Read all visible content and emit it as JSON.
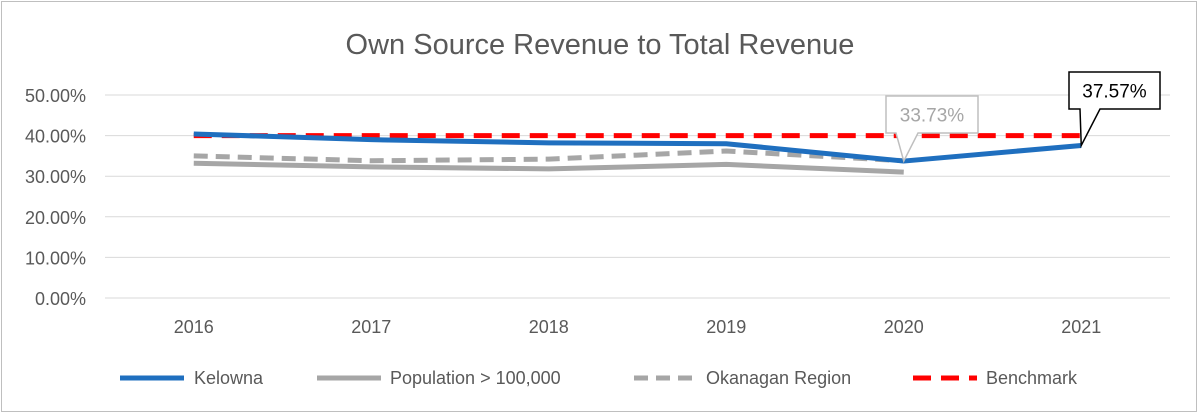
{
  "chart_data": {
    "type": "line",
    "title": "Own Source Revenue to Total Revenue",
    "xlabel": "",
    "ylabel": "",
    "categories": [
      "2016",
      "2017",
      "2018",
      "2019",
      "2020",
      "2021"
    ],
    "ylim": [
      0,
      50
    ],
    "yticks": [
      "0.00%",
      "10.00%",
      "20.00%",
      "30.00%",
      "40.00%",
      "50.00%"
    ],
    "grid": true,
    "legend_position": "bottom",
    "series": [
      {
        "name": "Kelowna",
        "values": [
          40.4,
          39.0,
          38.2,
          38.0,
          33.73,
          37.57
        ],
        "color": "#1f6fbf",
        "dash": "solid"
      },
      {
        "name": "Population > 100,000",
        "values": [
          33.2,
          32.3,
          31.8,
          32.9,
          31.0,
          null
        ],
        "color": "#a6a6a6",
        "dash": "solid"
      },
      {
        "name": "Okanagan Region",
        "values": [
          35.0,
          33.8,
          34.2,
          36.2,
          33.8,
          null
        ],
        "color": "#a6a6a6",
        "dash": "dashed"
      },
      {
        "name": "Benchmark",
        "values": [
          40,
          40,
          40,
          40,
          40,
          40
        ],
        "color": "#ff0000",
        "dash": "dashed"
      }
    ],
    "annotations": [
      {
        "text": "33.73%",
        "category": "2020",
        "value": 33.73,
        "color": "#a6a6a6"
      },
      {
        "text": "37.57%",
        "category": "2021",
        "value": 37.57,
        "color": "#000000"
      }
    ]
  }
}
